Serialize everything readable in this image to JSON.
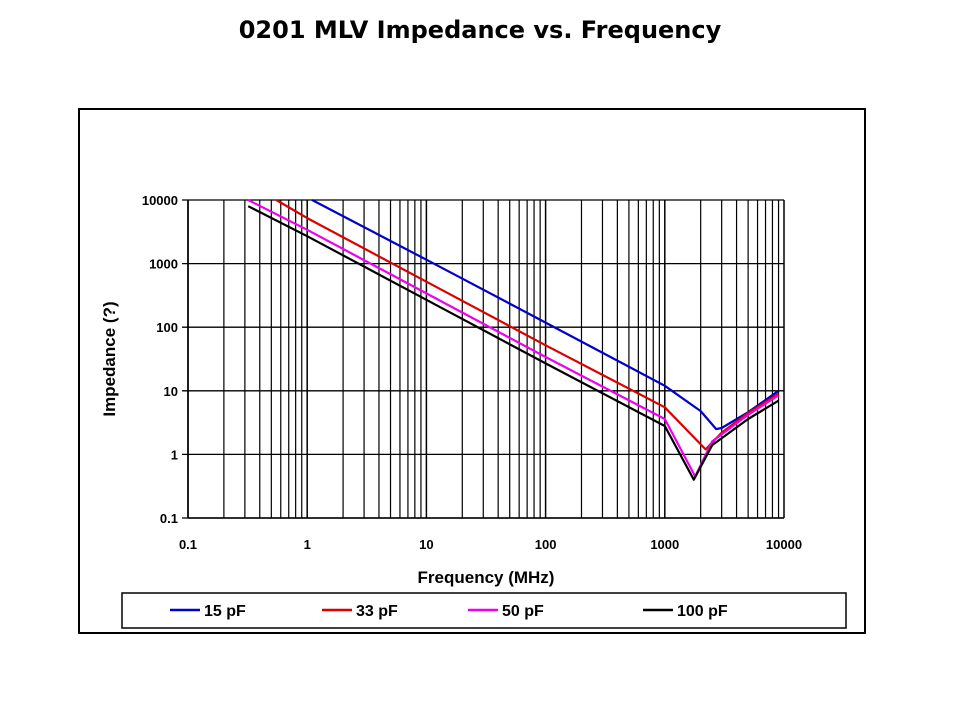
{
  "chart_data": {
    "type": "line",
    "title": "0201 MLV Impedance vs. Frequency",
    "xlabel": "Frequency (MHz)",
    "ylabel": "Impedance (?)",
    "xscale": "log",
    "yscale": "log",
    "xlim": [
      0.1,
      10000
    ],
    "ylim": [
      0.1,
      10000
    ],
    "xticks": [
      "0.1",
      "1",
      "10",
      "100",
      "1000",
      "10000"
    ],
    "yticks": [
      "0.1",
      "1",
      "10",
      "100",
      "1000",
      "10000"
    ],
    "grid": true,
    "legend_position": "bottom",
    "series": [
      {
        "name": "15 pF",
        "color": "#0000cc",
        "points": [
          [
            1.1,
            10000
          ],
          [
            10,
            1150
          ],
          [
            100,
            118
          ],
          [
            1000,
            12
          ],
          [
            2000,
            4.8
          ],
          [
            2700,
            2.5
          ],
          [
            3000,
            2.6
          ],
          [
            5000,
            4.6
          ],
          [
            9000,
            10
          ]
        ]
      },
      {
        "name": "33 pF",
        "color": "#dd0000",
        "points": [
          [
            0.55,
            10000
          ],
          [
            1,
            5200
          ],
          [
            10,
            520
          ],
          [
            100,
            52
          ],
          [
            1000,
            5.5
          ],
          [
            2200,
            1.2
          ],
          [
            3000,
            2.2
          ],
          [
            5000,
            4.5
          ],
          [
            9000,
            9
          ]
        ]
      },
      {
        "name": "50 pF",
        "color": "#ee00ee",
        "points": [
          [
            0.32,
            10000
          ],
          [
            1,
            3400
          ],
          [
            10,
            340
          ],
          [
            100,
            34
          ],
          [
            1000,
            3.6
          ],
          [
            1800,
            0.45
          ],
          [
            2500,
            1.6
          ],
          [
            5000,
            4.2
          ],
          [
            9000,
            8.5
          ]
        ]
      },
      {
        "name": "100 pF",
        "color": "#000000",
        "points": [
          [
            0.32,
            8000
          ],
          [
            1,
            2700
          ],
          [
            10,
            270
          ],
          [
            100,
            27
          ],
          [
            1000,
            2.8
          ],
          [
            1750,
            0.4
          ],
          [
            2500,
            1.4
          ],
          [
            5000,
            3.6
          ],
          [
            9000,
            7
          ]
        ]
      }
    ]
  }
}
